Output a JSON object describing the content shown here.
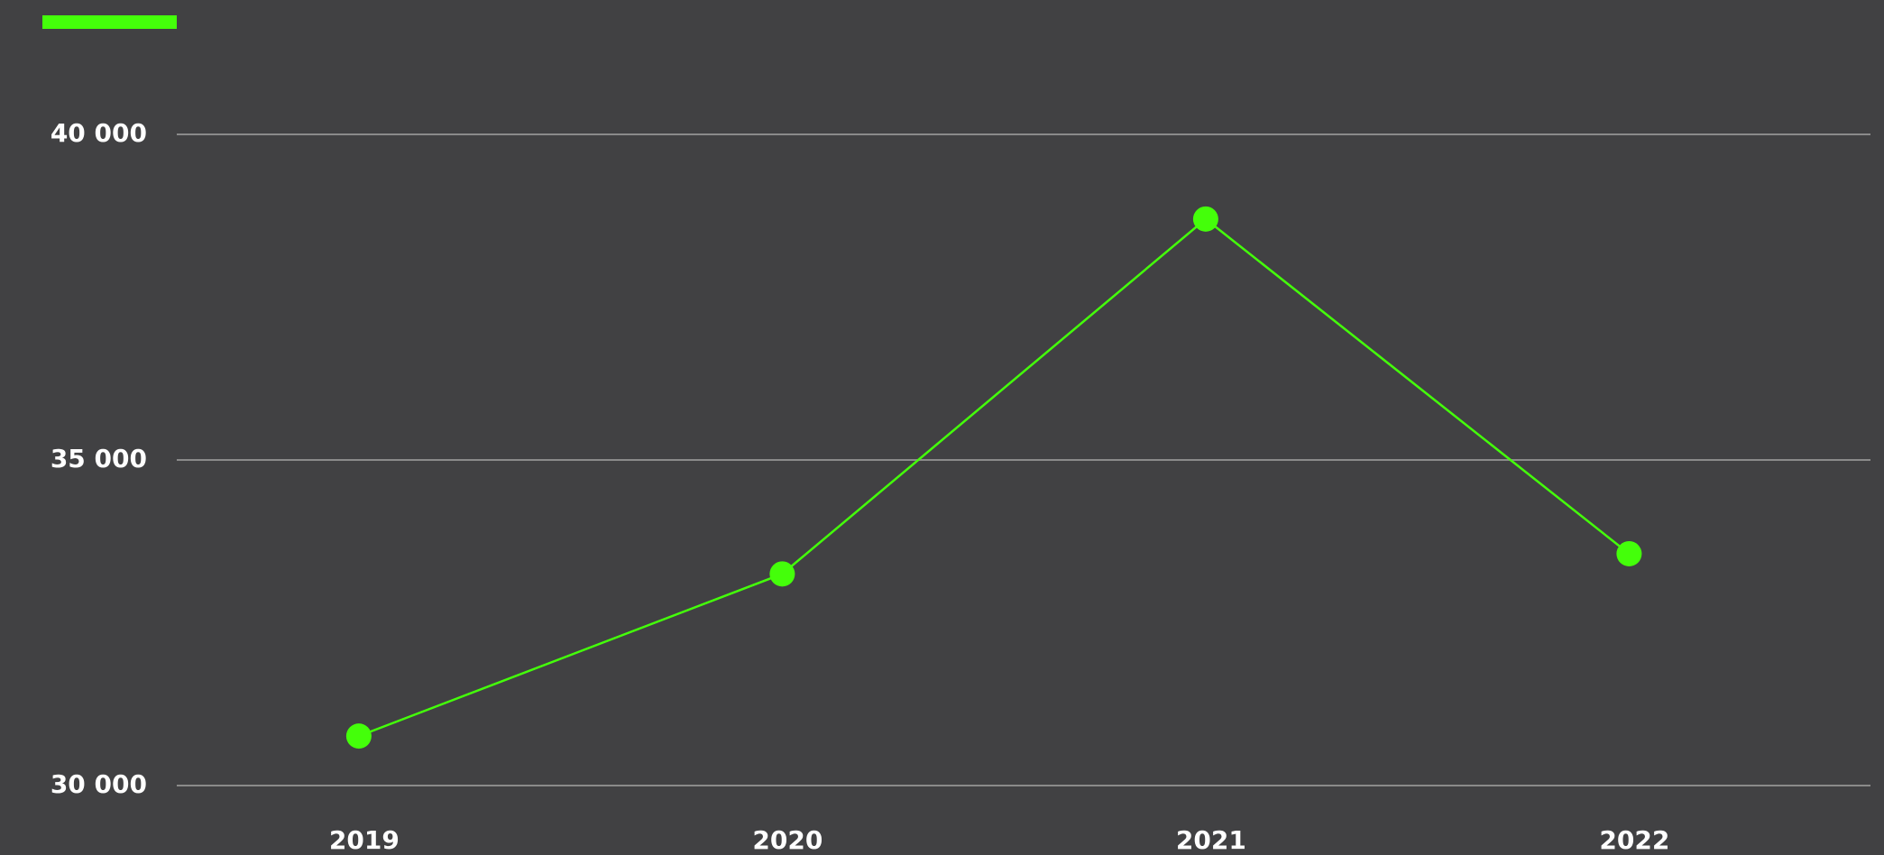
{
  "chart_data": {
    "type": "line",
    "categories": [
      "2019",
      "2020",
      "2021",
      "2022"
    ],
    "series": [
      {
        "color": "#44ff0a",
        "values": [
          30760,
          33250,
          38700,
          33560
        ]
      }
    ],
    "ylim": [
      30000,
      40000
    ],
    "yticks": [
      {
        "value": 30000,
        "label": "30 000"
      },
      {
        "value": 35000,
        "label": "35 000"
      },
      {
        "value": 40000,
        "label": "40 000"
      }
    ],
    "grid": true
  }
}
